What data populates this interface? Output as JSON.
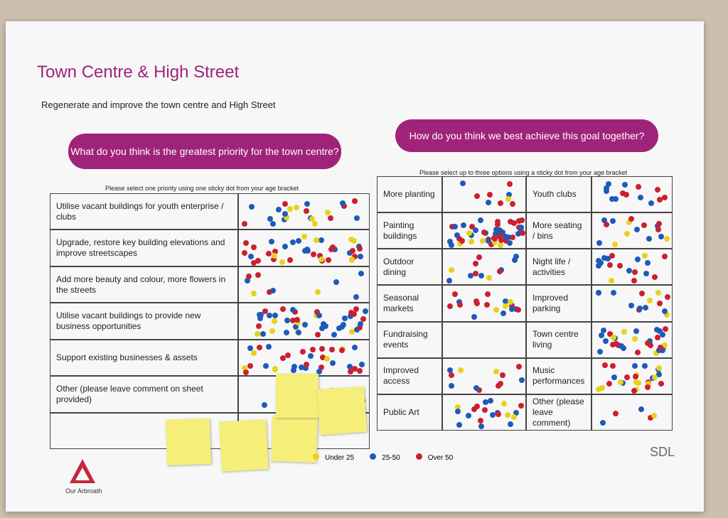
{
  "header": {
    "title": "Town Centre & High Street",
    "subtitle": "Regenerate and improve the town centre and High Street"
  },
  "left_panel": {
    "question": "What do you think is the greatest priority for the town centre?",
    "instruction": "Please select one priority using one sticky dot from your age bracket",
    "rows": [
      "Utilise vacant buildings for youth enterprise / clubs",
      "Upgrade, restore key building elevations and improve streetscapes",
      "Add more beauty and colour, more flowers in the streets",
      "Utilise vacant buildings to provide new business opportunities",
      "Support existing businesses & assets",
      "Other (please leave comment on sheet provided)"
    ]
  },
  "right_panel": {
    "question": "How do you think we best achieve this goal together?",
    "instruction": "Please select up to three options using a sticky dot from your age bracket",
    "column_1": [
      "More planting",
      "Painting buildings",
      "Outdoor dining",
      "Seasonal markets",
      "Fundraising events",
      "Improved access",
      "Public Art"
    ],
    "column_2": [
      "Youth clubs",
      "More seating / bins",
      "Night life / activities",
      "Improved parking",
      "Town centre living",
      "Music performances",
      "Other (please leave comment)"
    ]
  },
  "legend": [
    "Under 25",
    "25-50",
    "Over 50"
  ],
  "footer": {
    "logo": "Our Arbroath",
    "brand": "SDL"
  }
}
